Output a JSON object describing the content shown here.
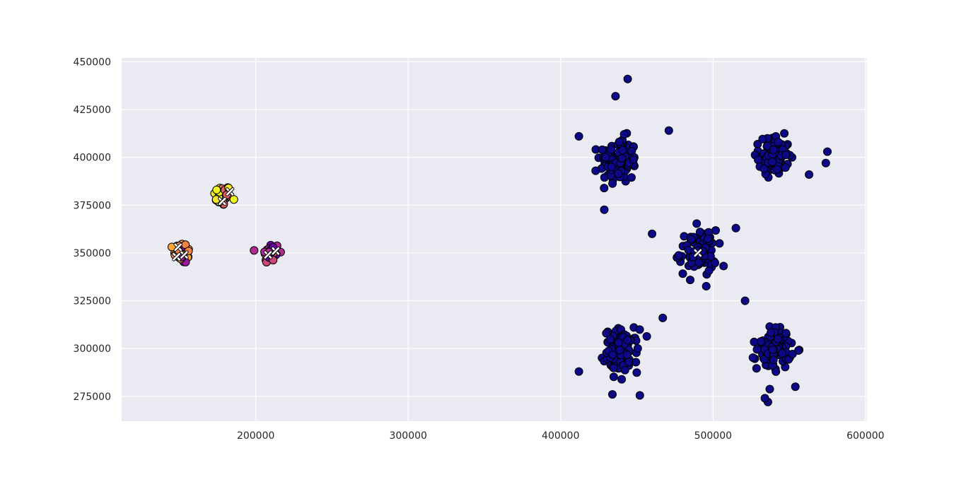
{
  "chart_data": {
    "type": "scatter",
    "title": "",
    "xlabel": "",
    "ylabel": "",
    "xlim": [
      112000,
      601000
    ],
    "ylim": [
      262000,
      452000
    ],
    "x_ticks": [
      200000,
      300000,
      400000,
      500000,
      600000
    ],
    "y_ticks": [
      275000,
      300000,
      325000,
      350000,
      375000,
      400000,
      425000,
      450000
    ],
    "grid": true,
    "legend": "none",
    "colors": {
      "background": "#eaeaf2",
      "grid": "#ffffff",
      "point_edge": "#000000",
      "centroid_marker": "#ffffff"
    },
    "point_spread": 11000,
    "clusters": [
      {
        "center": [
          178000,
          380000
        ],
        "count": 45,
        "spread": 5000,
        "colors": [
          "#f0f921",
          "#e16462",
          "#f5e626"
        ]
      },
      {
        "center": [
          152000,
          350000
        ],
        "count": 45,
        "spread": 5000,
        "colors": [
          "#fca636",
          "#9c179e",
          "#f1844b"
        ]
      },
      {
        "center": [
          210000,
          350000
        ],
        "count": 45,
        "spread": 5000,
        "colors": [
          "#6a00a8",
          "#b12a90",
          "#cc4778"
        ]
      },
      {
        "center": [
          438000,
          398000
        ],
        "count": 110,
        "spread": 11000,
        "colors": [
          "#0d0887"
        ]
      },
      {
        "center": [
          540000,
          401000
        ],
        "count": 100,
        "spread": 9000,
        "colors": [
          "#0d0887"
        ]
      },
      {
        "center": [
          490000,
          350000
        ],
        "count": 90,
        "spread": 11000,
        "colors": [
          "#0d0887"
        ]
      },
      {
        "center": [
          440000,
          299000
        ],
        "count": 110,
        "spread": 10000,
        "colors": [
          "#0d0887"
        ]
      },
      {
        "center": [
          540000,
          300000
        ],
        "count": 100,
        "spread": 10000,
        "colors": [
          "#0d0887"
        ]
      }
    ],
    "outliers": [
      [
        444000,
        441000
      ],
      [
        436000,
        432000
      ],
      [
        471000,
        414000
      ],
      [
        412000,
        411000
      ],
      [
        575000,
        403000
      ],
      [
        563000,
        391000
      ],
      [
        574000,
        397000
      ],
      [
        460000,
        360000
      ],
      [
        515000,
        363000
      ],
      [
        467000,
        316000
      ],
      [
        521000,
        325000
      ],
      [
        412000,
        288000
      ],
      [
        434000,
        276000
      ],
      [
        452000,
        275500
      ],
      [
        536000,
        272000
      ],
      [
        534000,
        274000
      ],
      [
        554000,
        280000
      ]
    ],
    "centroids": [
      [
        178000,
        377000
      ],
      [
        183000,
        382000
      ],
      [
        148000,
        348000
      ],
      [
        153000,
        349000
      ],
      [
        149000,
        353000
      ],
      [
        208000,
        349000
      ],
      [
        213000,
        351000
      ],
      [
        490000,
        350000
      ]
    ]
  }
}
